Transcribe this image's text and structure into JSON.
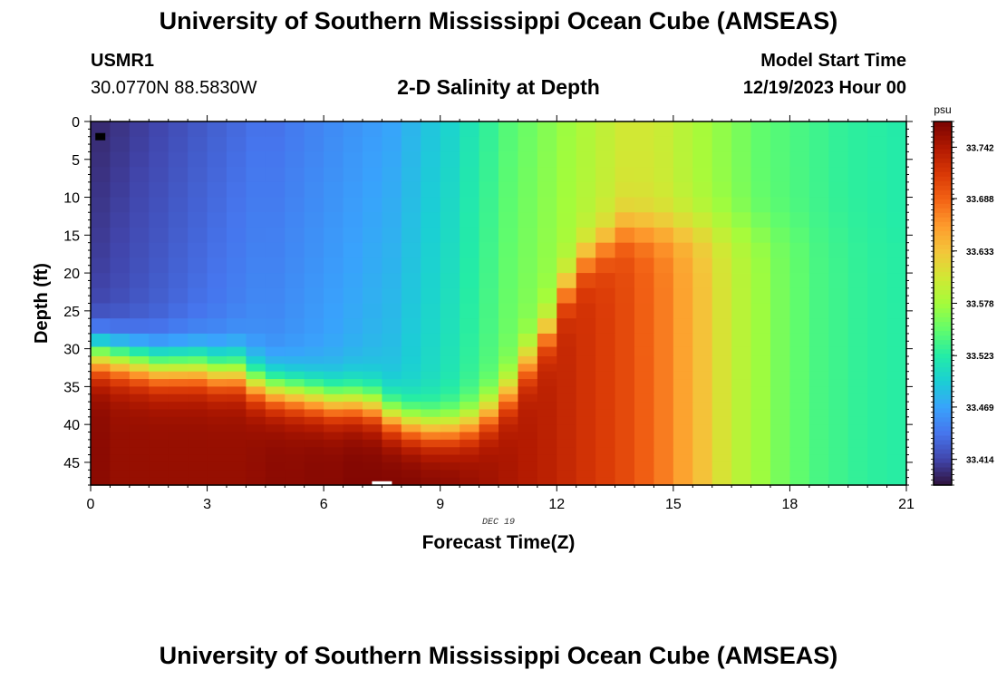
{
  "header": {
    "main_title": "University of Southern Mississippi Ocean Cube (AMSEAS)",
    "station_id": "USMR1",
    "station_coords": "30.0770N  88.5830W",
    "plot_title": "2-D Salinity at Depth",
    "model_start_label": "Model Start Time",
    "model_start_value": "12/19/2023 Hour 00"
  },
  "footer": {
    "main_title": "University of Southern Mississippi Ocean Cube (AMSEAS)"
  },
  "colors": {
    "background": "#ffffff",
    "axis": "#000000",
    "colormap": [
      "#30123b",
      "#4145ab",
      "#4675ed",
      "#39a2fc",
      "#1bcfd4",
      "#24eca6",
      "#61fc6c",
      "#a4fc3b",
      "#d1e834",
      "#f3c63a",
      "#fe9b2d",
      "#f36315",
      "#d93806",
      "#b11901",
      "#7a0402"
    ]
  },
  "chart_data": {
    "type": "heatmap",
    "title": "2-D Salinity at Depth",
    "xlabel": "Forecast Time(Z)",
    "ylabel": "Depth (ft)",
    "x_date_label": "DEC 19",
    "xlim": [
      0,
      21
    ],
    "ylim": [
      0,
      48
    ],
    "y_inverted": true,
    "xticks": [
      0,
      3,
      6,
      9,
      12,
      15,
      18,
      21
    ],
    "yticks": [
      0,
      5,
      10,
      15,
      20,
      25,
      30,
      35,
      40,
      45
    ],
    "colorbar": {
      "unit": "psu",
      "range": [
        33.387,
        33.769
      ],
      "ticks": [
        33.742,
        33.688,
        33.633,
        33.578,
        33.523,
        33.469,
        33.414
      ],
      "tick_labels": [
        "33.742",
        "33.688",
        "33.633",
        "33.578",
        "33.523",
        "33.469",
        "33.414"
      ]
    },
    "columns": [
      {
        "time": 0.25,
        "surface": 33.4,
        "bottom": 33.76,
        "thermocline_depth": 31.0
      },
      {
        "time": 0.75,
        "surface": 33.405,
        "bottom": 33.755,
        "thermocline_depth": 31.5
      },
      {
        "time": 1.25,
        "surface": 33.41,
        "bottom": 33.755,
        "thermocline_depth": 32.0
      },
      {
        "time": 1.75,
        "surface": 33.415,
        "bottom": 33.755,
        "thermocline_depth": 32.5
      },
      {
        "time": 2.25,
        "surface": 33.42,
        "bottom": 33.755,
        "thermocline_depth": 32.5
      },
      {
        "time": 2.75,
        "surface": 33.425,
        "bottom": 33.755,
        "thermocline_depth": 32.5
      },
      {
        "time": 3.25,
        "surface": 33.43,
        "bottom": 33.755,
        "thermocline_depth": 33.0
      },
      {
        "time": 3.75,
        "surface": 33.435,
        "bottom": 33.755,
        "thermocline_depth": 33.0
      },
      {
        "time": 4.25,
        "surface": 33.44,
        "bottom": 33.757,
        "thermocline_depth": 34.5
      },
      {
        "time": 4.75,
        "surface": 33.44,
        "bottom": 33.76,
        "thermocline_depth": 35.5
      },
      {
        "time": 5.25,
        "surface": 33.445,
        "bottom": 33.76,
        "thermocline_depth": 36.0
      },
      {
        "time": 5.75,
        "surface": 33.45,
        "bottom": 33.762,
        "thermocline_depth": 36.5
      },
      {
        "time": 6.25,
        "surface": 33.455,
        "bottom": 33.762,
        "thermocline_depth": 37.0
      },
      {
        "time": 6.75,
        "surface": 33.46,
        "bottom": 33.765,
        "thermocline_depth": 37.0
      },
      {
        "time": 7.25,
        "surface": 33.465,
        "bottom": 33.765,
        "thermocline_depth": 37.5
      },
      {
        "time": 7.75,
        "surface": 33.47,
        "bottom": 33.765,
        "thermocline_depth": 39.0
      },
      {
        "time": 8.25,
        "surface": 33.48,
        "bottom": 33.765,
        "thermocline_depth": 40.0
      },
      {
        "time": 8.75,
        "surface": 33.49,
        "bottom": 33.762,
        "thermocline_depth": 40.5
      },
      {
        "time": 9.25,
        "surface": 33.5,
        "bottom": 33.76,
        "thermocline_depth": 40.5
      },
      {
        "time": 9.75,
        "surface": 33.515,
        "bottom": 33.755,
        "thermocline_depth": 40.0
      },
      {
        "time": 10.25,
        "surface": 33.53,
        "bottom": 33.75,
        "thermocline_depth": 38.5
      },
      {
        "time": 10.75,
        "surface": 33.545,
        "bottom": 33.745,
        "thermocline_depth": 36.0
      },
      {
        "time": 11.25,
        "surface": 33.555,
        "bottom": 33.74,
        "thermocline_depth": 32.0
      },
      {
        "time": 11.75,
        "surface": 33.565,
        "bottom": 33.735,
        "thermocline_depth": 28.0
      },
      {
        "time": 12.25,
        "surface": 33.575,
        "bottom": 33.728,
        "thermocline_depth": 22.0
      },
      {
        "time": 12.75,
        "surface": 33.585,
        "bottom": 33.72,
        "thermocline_depth": 18.0
      },
      {
        "time": 13.25,
        "surface": 33.595,
        "bottom": 33.712,
        "thermocline_depth": 16.0
      },
      {
        "time": 13.75,
        "surface": 33.605,
        "bottom": 33.703,
        "thermocline_depth": 14.0
      },
      {
        "time": 14.25,
        "surface": 33.605,
        "bottom": 33.69,
        "thermocline_depth": 14.0
      },
      {
        "time": 14.75,
        "surface": 33.6,
        "bottom": 33.675,
        "thermocline_depth": 14.0
      },
      {
        "time": 15.25,
        "surface": 33.59,
        "bottom": 33.655,
        "thermocline_depth": 14.0
      },
      {
        "time": 15.75,
        "surface": 33.58,
        "bottom": 33.635,
        "thermocline_depth": 14.0
      },
      {
        "time": 16.25,
        "surface": 33.57,
        "bottom": 33.61,
        "thermocline_depth": 14.0
      },
      {
        "time": 16.75,
        "surface": 33.56,
        "bottom": 33.59,
        "thermocline_depth": 14.0
      },
      {
        "time": 17.25,
        "surface": 33.55,
        "bottom": 33.575,
        "thermocline_depth": 14.0
      },
      {
        "time": 17.75,
        "surface": 33.545,
        "bottom": 33.56,
        "thermocline_depth": 14.0
      },
      {
        "time": 18.25,
        "surface": 33.54,
        "bottom": 33.55,
        "thermocline_depth": 14.0
      },
      {
        "time": 18.75,
        "surface": 33.535,
        "bottom": 33.54,
        "thermocline_depth": 14.0
      },
      {
        "time": 19.25,
        "surface": 33.53,
        "bottom": 33.535,
        "thermocline_depth": 14.0
      },
      {
        "time": 19.75,
        "surface": 33.527,
        "bottom": 33.53,
        "thermocline_depth": 14.0
      },
      {
        "time": 20.25,
        "surface": 33.525,
        "bottom": 33.527,
        "thermocline_depth": 14.0
      },
      {
        "time": 20.75,
        "surface": 33.522,
        "bottom": 33.525,
        "thermocline_depth": 14.0
      }
    ],
    "depth_levels": [
      1,
      3,
      5,
      7,
      9,
      11,
      13,
      15,
      17,
      19,
      21,
      23,
      25,
      27,
      29,
      30.5,
      31.5,
      32.5,
      33.5,
      34.5,
      35.5,
      36.5,
      37.5,
      38.5,
      39.5,
      40.5,
      41.5,
      42.5,
      43.5,
      44.5,
      45.5,
      46.5,
      47.5
    ],
    "markers": [
      {
        "name": "black-marker",
        "time": 0.25,
        "depth": 2.0,
        "color": "#000000"
      },
      {
        "name": "white-marker",
        "time": 7.5,
        "depth": 47.8,
        "color": "#ffffff"
      }
    ]
  }
}
